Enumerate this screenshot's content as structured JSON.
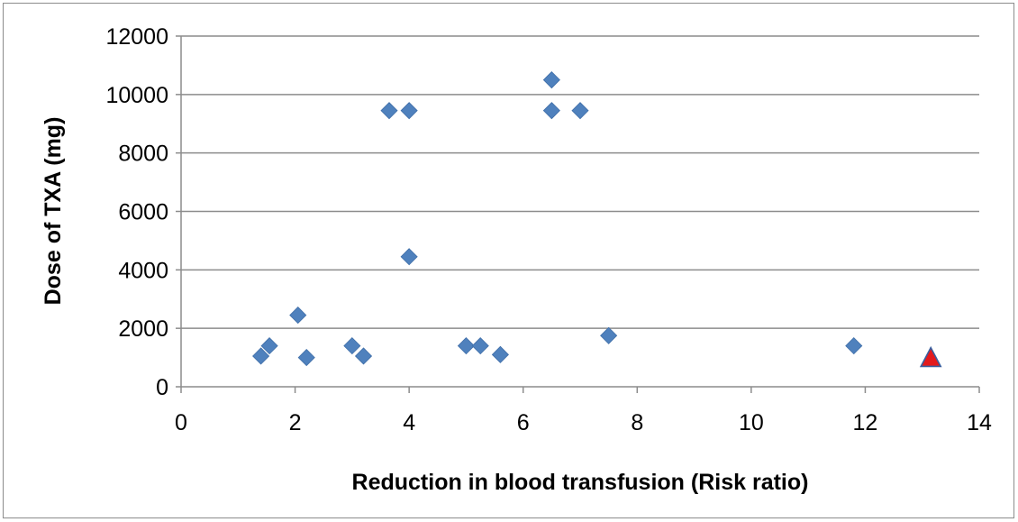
{
  "chart_data": {
    "type": "scatter",
    "title": "",
    "xlabel": "Reduction in blood transfusion  (Risk ratio)",
    "ylabel": "Dose of TXA (mg)",
    "xlim": [
      0,
      14
    ],
    "ylim": [
      0,
      12000
    ],
    "x_ticks": [
      "0",
      "2",
      "4",
      "6",
      "8",
      "10",
      "12",
      "14"
    ],
    "y_ticks": [
      "0",
      "2000",
      "4000",
      "6000",
      "8000",
      "10000",
      "12000"
    ],
    "grid": "horizontal",
    "legend": "none",
    "series": [
      {
        "marker": "diamond",
        "color": "#4f81bd",
        "points": [
          {
            "x": 1.4,
            "y": 1050
          },
          {
            "x": 1.55,
            "y": 1400
          },
          {
            "x": 2.05,
            "y": 2450
          },
          {
            "x": 2.2,
            "y": 1000
          },
          {
            "x": 3.0,
            "y": 1400
          },
          {
            "x": 3.2,
            "y": 1050
          },
          {
            "x": 3.65,
            "y": 9450
          },
          {
            "x": 4.0,
            "y": 9450
          },
          {
            "x": 4.0,
            "y": 4450
          },
          {
            "x": 5.0,
            "y": 1400
          },
          {
            "x": 5.25,
            "y": 1400
          },
          {
            "x": 5.6,
            "y": 1100
          },
          {
            "x": 6.5,
            "y": 10500
          },
          {
            "x": 6.5,
            "y": 9450
          },
          {
            "x": 7.0,
            "y": 9450
          },
          {
            "x": 7.5,
            "y": 1750
          },
          {
            "x": 11.8,
            "y": 1400
          }
        ]
      },
      {
        "marker": "triangle",
        "color": "#e31a1c",
        "edge_color": "#3a5f9e",
        "points": [
          {
            "x": 13.15,
            "y": 1000
          }
        ]
      }
    ]
  }
}
